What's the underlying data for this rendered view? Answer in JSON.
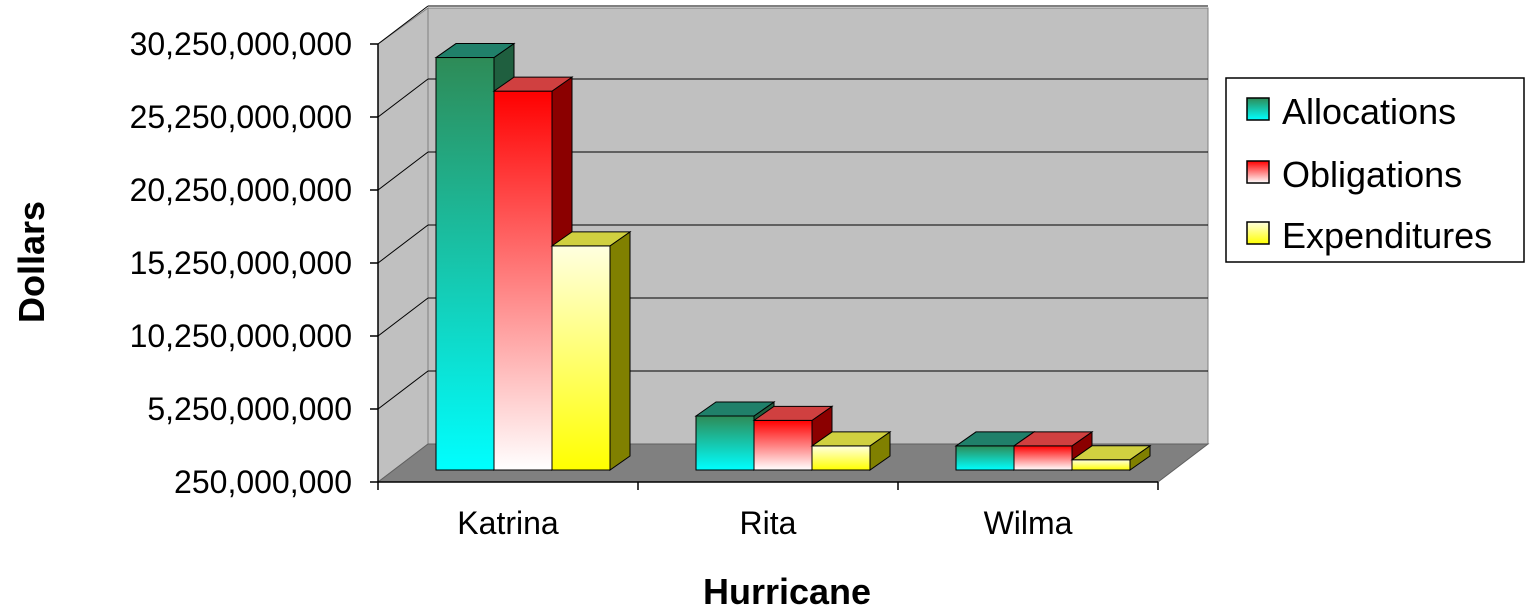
{
  "chart_data": {
    "type": "bar",
    "title": "",
    "xlabel": "Hurricane",
    "ylabel": "Dollars",
    "categories": [
      "Katrina",
      "Rita",
      "Wilma"
    ],
    "series": [
      {
        "name": "Allocations",
        "values": [
          28500000000,
          3950000000,
          1900000000
        ],
        "color_top": "#00ffff",
        "color_bottom": "#2e8b57",
        "color_face": "#1fa88a"
      },
      {
        "name": "Obligations",
        "values": [
          26200000000,
          3650000000,
          1900000000
        ],
        "color_top": "#ff0000",
        "color_bottom": "#ffffff",
        "color_face": "#ff4040"
      },
      {
        "name": "Expenditures",
        "values": [
          15600000000,
          1900000000,
          950000000
        ],
        "color_top": "#ffff00",
        "color_bottom": "#ffffd0",
        "color_face": "#ffff99"
      }
    ],
    "yticks": [
      "250,000,000",
      "5,250,000,000",
      "10,250,000,000",
      "15,250,000,000",
      "20,250,000,000",
      "25,250,000,000",
      "30,250,000,000"
    ],
    "ylim": [
      250000000,
      30250000000
    ],
    "grid": true,
    "legend_position": "right",
    "colors": {
      "wall": "#c0c0c0",
      "floor": "#808080",
      "grid": "#000000"
    }
  }
}
